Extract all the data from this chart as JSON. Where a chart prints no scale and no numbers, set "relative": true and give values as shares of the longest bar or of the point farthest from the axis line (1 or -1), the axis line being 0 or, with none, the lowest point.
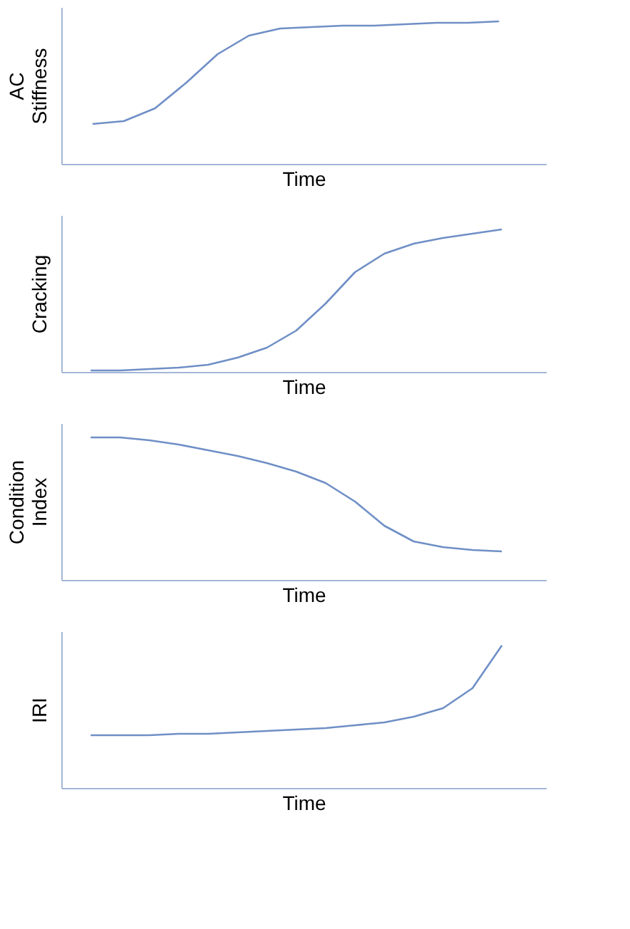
{
  "chart_data": [
    {
      "type": "line",
      "relative": true,
      "xlabel": "Time",
      "ylabel": "AC Stiffness",
      "categories": [
        null,
        null,
        null,
        null,
        null,
        null,
        null,
        null,
        null,
        null,
        null,
        null,
        null,
        null
      ],
      "series": [
        {
          "color": "#6f8fc6",
          "values": [
            0.28,
            0.3,
            0.39,
            0.57,
            0.77,
            0.9,
            0.95,
            0.96,
            0.97,
            0.97,
            0.98,
            0.99,
            0.99,
            1.0
          ]
        }
      ]
    },
    {
      "type": "line",
      "relative": true,
      "xlabel": "Time",
      "ylabel": "Cracking",
      "categories": [
        null,
        null,
        null,
        null,
        null,
        null,
        null,
        null,
        null,
        null,
        null,
        null,
        null,
        null,
        null
      ],
      "series": [
        {
          "color": "#6f8fc6",
          "values": [
            0.01,
            0.01,
            0.02,
            0.03,
            0.05,
            0.1,
            0.17,
            0.29,
            0.48,
            0.7,
            0.83,
            0.9,
            0.94,
            0.97,
            1.0
          ]
        }
      ]
    },
    {
      "type": "line",
      "relative": true,
      "xlabel": "Time",
      "ylabel": "Condition Index",
      "categories": [
        null,
        null,
        null,
        null,
        null,
        null,
        null,
        null,
        null,
        null,
        null,
        null,
        null,
        null,
        null
      ],
      "series": [
        {
          "color": "#6f8fc6",
          "values": [
            1.0,
            1.0,
            0.98,
            0.95,
            0.91,
            0.87,
            0.82,
            0.76,
            0.68,
            0.55,
            0.38,
            0.27,
            0.23,
            0.21,
            0.2
          ]
        }
      ]
    },
    {
      "type": "line",
      "relative": true,
      "xlabel": "Time",
      "ylabel": "IRI",
      "categories": [
        null,
        null,
        null,
        null,
        null,
        null,
        null,
        null,
        null,
        null,
        null,
        null,
        null,
        null,
        null
      ],
      "series": [
        {
          "color": "#6f8fc6",
          "values": [
            0.37,
            0.37,
            0.37,
            0.38,
            0.38,
            0.39,
            0.4,
            0.41,
            0.42,
            0.44,
            0.46,
            0.5,
            0.56,
            0.7,
            1.0
          ]
        }
      ]
    }
  ]
}
